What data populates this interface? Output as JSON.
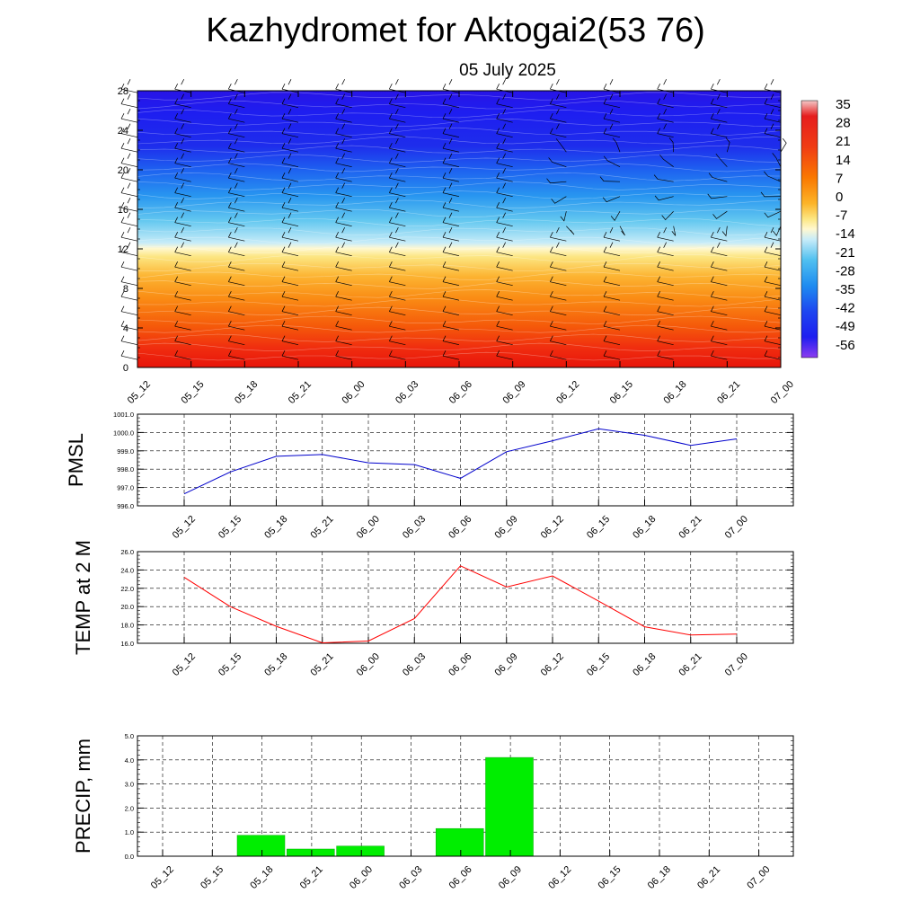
{
  "header": {
    "title": "Kazhydromet for Aktogai2(53 76)",
    "date": "05 July 2025"
  },
  "times": [
    "05_12",
    "05_15",
    "05_18",
    "05_21",
    "06_00",
    "06_03",
    "06_06",
    "06_09",
    "06_12",
    "06_15",
    "06_18",
    "06_21",
    "07_00"
  ],
  "chart_data": [
    {
      "type": "heatmap",
      "name": "upper-air-cross-section",
      "x": [
        "05_12",
        "05_15",
        "05_18",
        "05_21",
        "06_00",
        "06_03",
        "06_06",
        "06_09",
        "06_12",
        "06_15",
        "06_18",
        "06_21",
        "07_00"
      ],
      "ylim": [
        0,
        28
      ],
      "yticks": [
        0,
        4,
        8,
        12,
        16,
        20,
        24,
        28
      ],
      "colorbar": {
        "labels": [
          "35",
          "28",
          "21",
          "14",
          "7",
          "0",
          "-7",
          "-14",
          "-21",
          "-28",
          "-35",
          "-42",
          "-49",
          "-56"
        ],
        "colors": [
          "#f4b8b8",
          "#e8281e",
          "#f03c14",
          "#fa6400",
          "#fca020",
          "#fcd75a",
          "#fff0a0",
          "#d0ecf6",
          "#64c8f0",
          "#1ea0f0",
          "#1e64f0",
          "#1e28f0",
          "#3c14e6",
          "#8c3cf0"
        ]
      },
      "wind_barbs": true,
      "contour_lines": true
    },
    {
      "type": "line",
      "name": "pmsl",
      "ylabel": "PMSL",
      "ylim": [
        996.0,
        1001.0
      ],
      "yticks": [
        "996.0",
        "997.0",
        "998.0",
        "999.0",
        "1000.0",
        "1001.0"
      ],
      "x": [
        "05_12",
        "05_15",
        "05_18",
        "05_21",
        "06_00",
        "06_03",
        "06_06",
        "06_09",
        "06_12",
        "06_15",
        "06_18",
        "06_21",
        "07_00"
      ],
      "values": [
        996.65,
        997.85,
        998.7,
        998.8,
        998.35,
        998.25,
        997.5,
        998.95,
        999.55,
        1000.2,
        999.85,
        999.3,
        999.65
      ],
      "color": "#0000cc",
      "grid": true
    },
    {
      "type": "line",
      "name": "temp-2m",
      "ylabel": "TEMP at 2 M",
      "ylim": [
        16.0,
        26.0
      ],
      "yticks": [
        "16.0",
        "18.0",
        "20.0",
        "22.0",
        "24.0",
        "26.0"
      ],
      "x": [
        "05_12",
        "05_15",
        "05_18",
        "05_21",
        "06_00",
        "06_03",
        "06_06",
        "06_09",
        "06_12",
        "06_15",
        "06_18",
        "06_21",
        "07_00"
      ],
      "values": [
        23.2,
        20.0,
        17.85,
        16.05,
        16.25,
        18.7,
        24.45,
        22.15,
        23.35,
        20.6,
        17.8,
        16.9,
        17.0
      ],
      "color": "#ff0000",
      "grid": true
    },
    {
      "type": "bar",
      "name": "precip",
      "ylabel": "PRECIP, mm",
      "ylim": [
        0.0,
        5.0
      ],
      "yticks": [
        "0.0",
        "1.0",
        "2.0",
        "3.0",
        "4.0",
        "5.0"
      ],
      "categories": [
        "05_12",
        "05_15",
        "05_18",
        "05_21",
        "06_00",
        "06_03",
        "06_06",
        "06_09",
        "06_12",
        "06_15",
        "06_18",
        "06_21",
        "07_00"
      ],
      "values": [
        0,
        0,
        0.87,
        0.3,
        0.42,
        0,
        1.15,
        4.1,
        0,
        0,
        0,
        0,
        0
      ],
      "color": "#00ee00",
      "grid": true
    }
  ]
}
